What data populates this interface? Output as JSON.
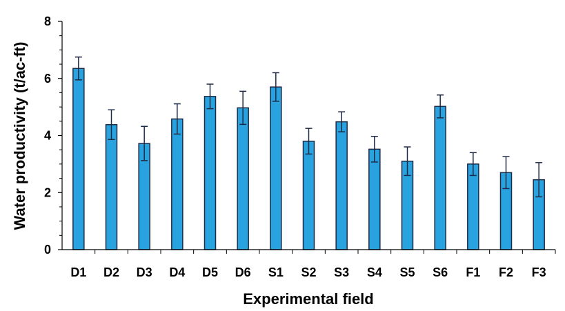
{
  "chart_data": {
    "type": "bar",
    "title": "",
    "xlabel": "Experimental field",
    "ylabel": "Water productivity (t/ac-ft)",
    "ylim": [
      0,
      8
    ],
    "yticks": [
      "0",
      "2",
      "4",
      "6",
      "8"
    ],
    "grid": false,
    "categories": [
      "D1",
      "D2",
      "D3",
      "D4",
      "D5",
      "D6",
      "S1",
      "S2",
      "S3",
      "S4",
      "S5",
      "S6",
      "F1",
      "F2",
      "F3"
    ],
    "values": [
      6.35,
      4.38,
      3.72,
      4.58,
      5.37,
      4.97,
      5.7,
      3.8,
      4.48,
      3.52,
      3.1,
      5.02,
      3.0,
      2.7,
      2.45
    ],
    "errors": [
      0.4,
      0.52,
      0.6,
      0.53,
      0.43,
      0.58,
      0.5,
      0.45,
      0.35,
      0.45,
      0.5,
      0.4,
      0.4,
      0.56,
      0.6
    ],
    "colors": {
      "bar_fill": "#29A3DF",
      "bar_stroke": "#1F2A44",
      "error_bar": "#1F2A44",
      "axis": "#000000"
    }
  }
}
